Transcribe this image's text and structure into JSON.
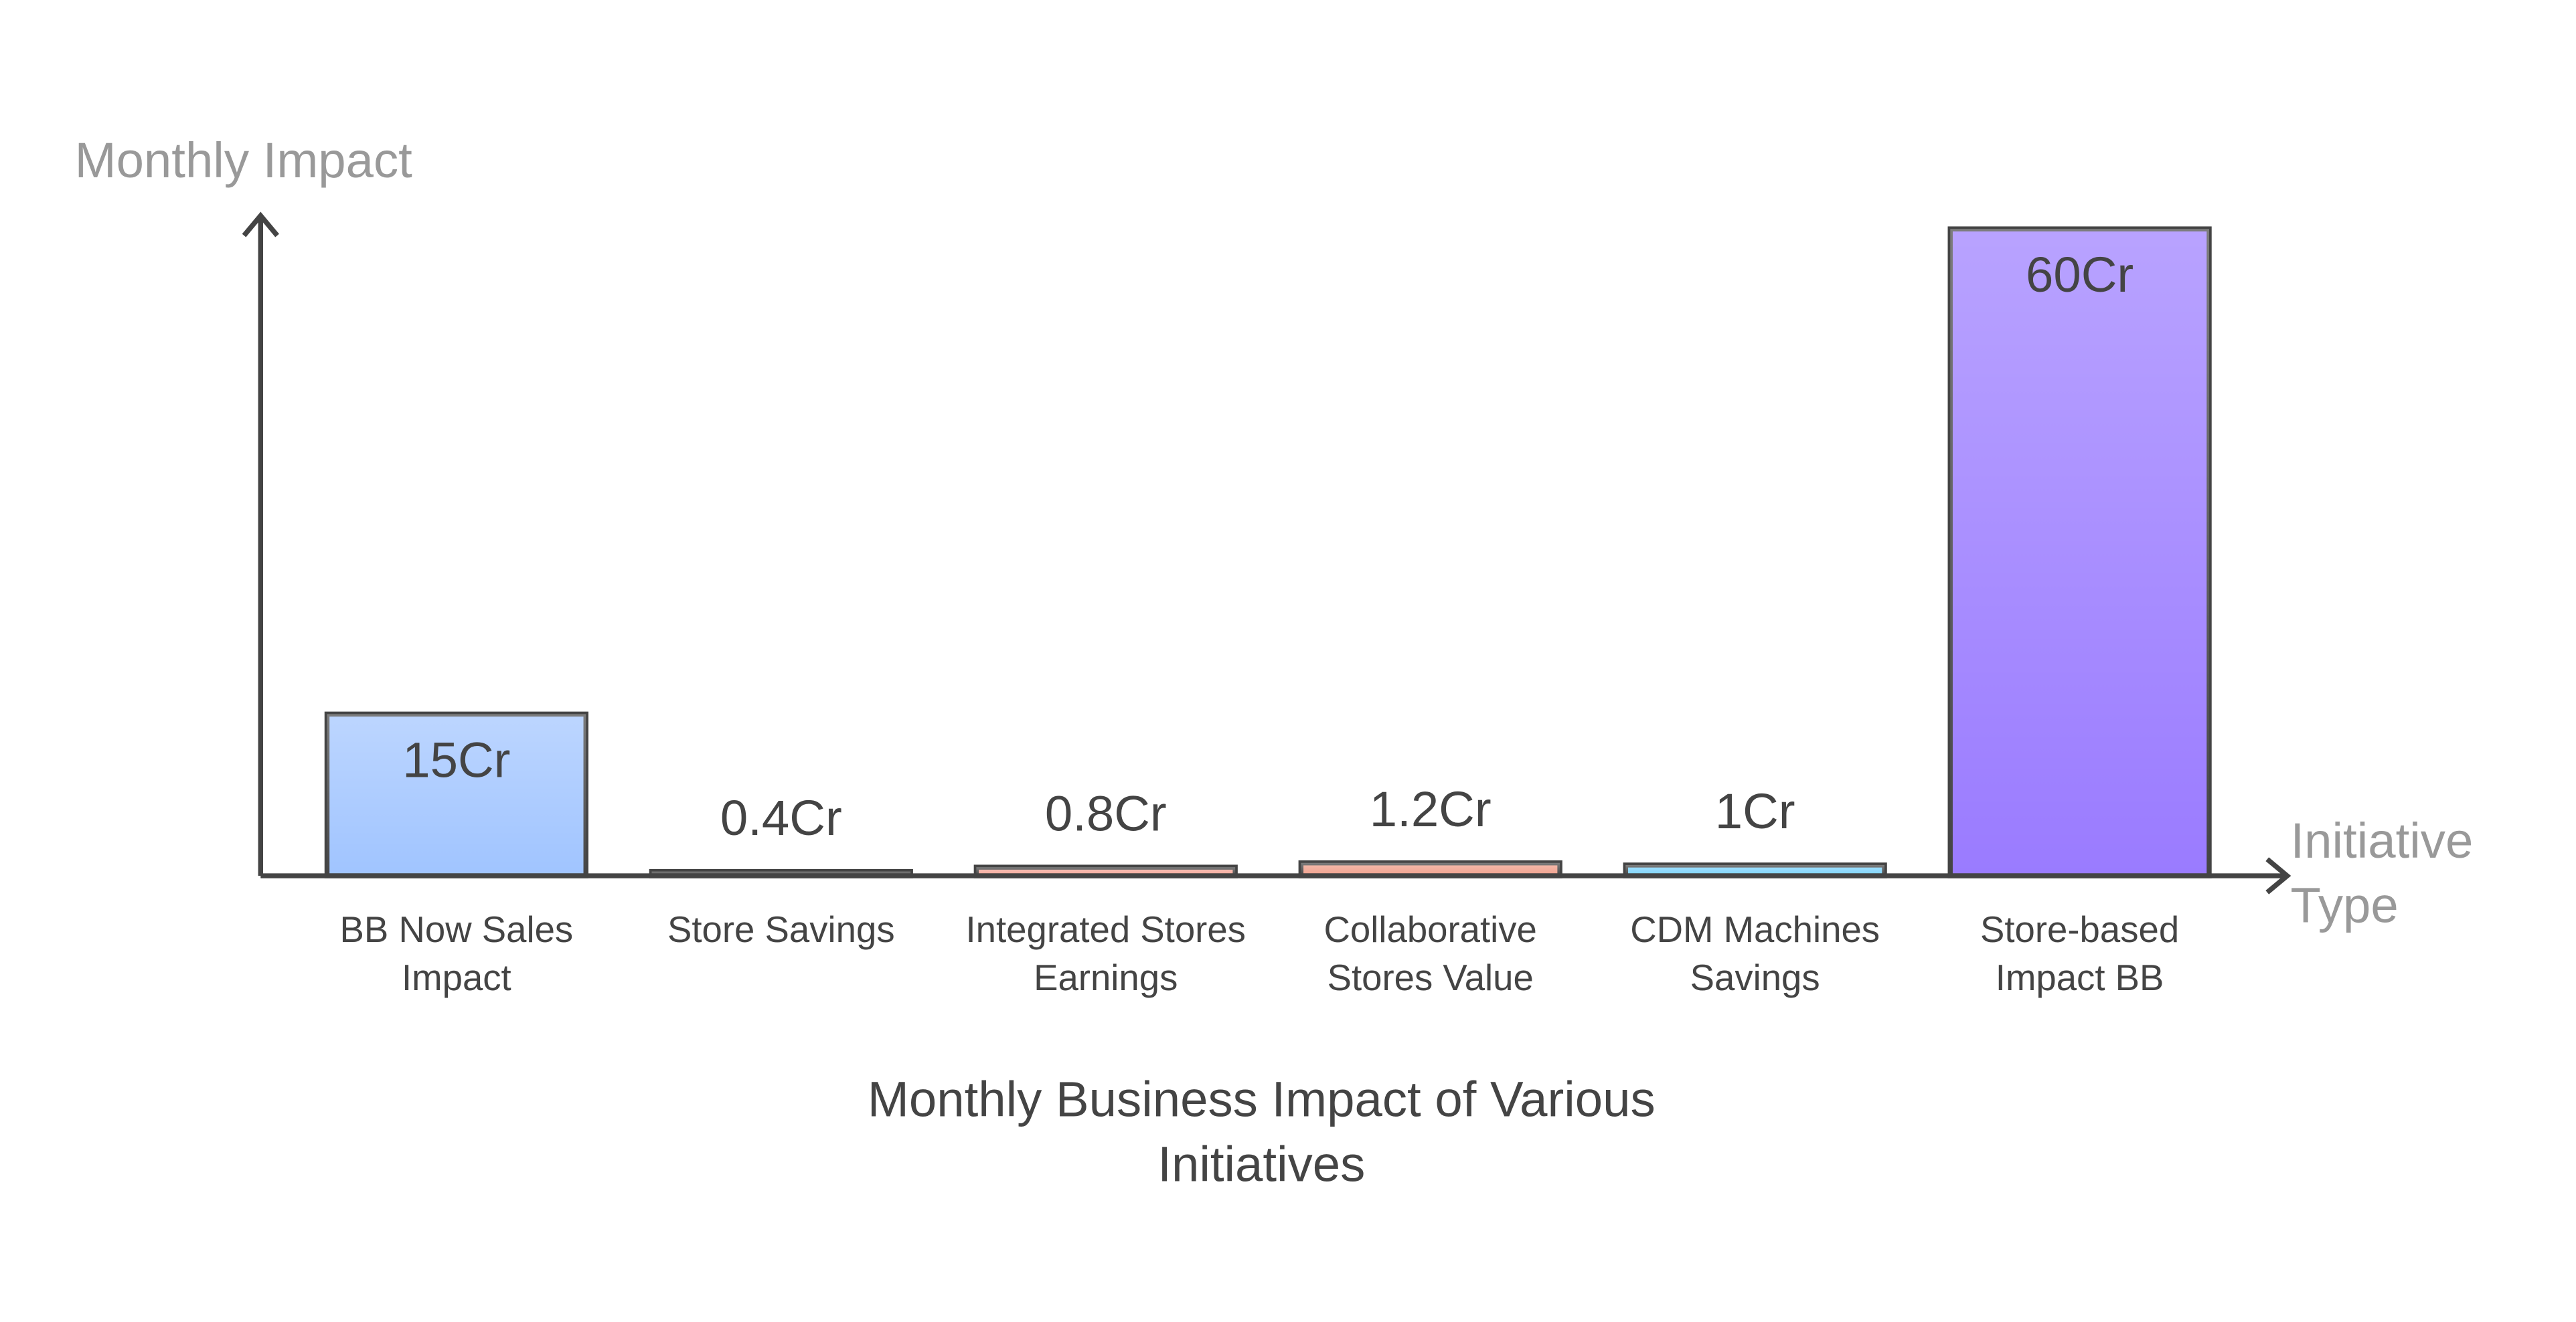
{
  "chart_data": {
    "type": "bar",
    "title": "Monthly Business Impact of Various Initiatives",
    "y_label": "Monthly Impact",
    "x_label": "Initiative Type",
    "categories": [
      "BB Now Sales Impact",
      "Store Savings",
      "Integrated Stores Earnings",
      "Collaborative Stores Value",
      "CDM Machines Savings",
      "Store-based Impact BB"
    ],
    "values": [
      15,
      0.4,
      0.8,
      1.2,
      1,
      60
    ],
    "value_labels": [
      "15Cr",
      "0.4Cr",
      "0.8Cr",
      "1.2Cr",
      "1Cr",
      "60Cr"
    ],
    "colors": [
      "#a0c4ff",
      "#555555",
      "#f4a89a",
      "#f0a08c",
      "#7dd3fc",
      "#9a7bff"
    ]
  }
}
